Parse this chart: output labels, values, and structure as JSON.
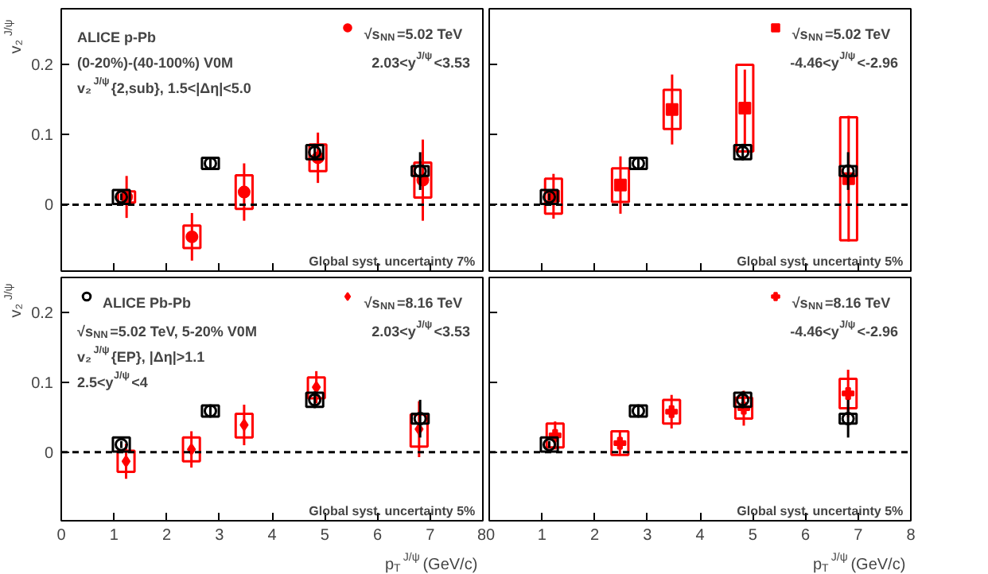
{
  "chart_data": [
    {
      "type": "scatter",
      "ylabel": "v₂$^{J/ψ}$",
      "xlim": [
        0,
        8
      ],
      "ylim": [
        -0.095,
        0.28
      ],
      "xticks": [
        0,
        1,
        2,
        3,
        4,
        5,
        6,
        7,
        8
      ],
      "yticks": [
        0,
        0.1,
        0.2
      ],
      "tick_labels": "y",
      "legend": "top right",
      "ref_lines": [
        {
          "axis": "y",
          "value": 0,
          "line_style": "dashed",
          "color": "#000000"
        }
      ],
      "annotations": [
        "2.03<y$^{J/ψ}$<3.53",
        "ALICE p-Pb",
        "(0-20%)-(40-100%) V0M",
        "v₂$^{J/ψ}${2,sub}, 1.5<|Δη|<5.0",
        "Global syst. uncertainty 7%"
      ],
      "series": [
        {
          "name": "√s$_{NN}$=5.02 TeV",
          "type": "scatter",
          "marker": "circle",
          "color": "#ff0000",
          "x": [
            1.24,
            2.48,
            3.47,
            4.87,
            6.86
          ],
          "values": [
            0.011,
            -0.046,
            0.018,
            0.067,
            0.035
          ],
          "errors": [
            0.03,
            0.034,
            0.041,
            0.036,
            0.058
          ]
        },
        {
          "type": "bar",
          "color": "#ff0000",
          "x": [
            1.24,
            2.48,
            3.47,
            4.87,
            6.86
          ],
          "base": [
            0.003,
            -0.062,
            -0.006,
            0.048,
            0.01
          ],
          "values": [
            0.016,
            0.032,
            0.048,
            0.038,
            0.05
          ]
        },
        {
          "type": "scatter",
          "marker": "circle",
          "color": "#000000",
          "x": [
            1.14,
            2.83,
            4.81,
            6.81
          ],
          "values": [
            0.011,
            0.059,
            0.075,
            0.048
          ],
          "errors": [
            0.005,
            0.007,
            0.012,
            0.027
          ]
        },
        {
          "type": "bar",
          "color": "#000000",
          "x": [
            1.14,
            2.83,
            4.81,
            6.81
          ],
          "base": [
            0.001,
            0.051,
            0.065,
            0.041
          ],
          "values": [
            0.02,
            0.016,
            0.02,
            0.014
          ]
        }
      ]
    },
    {
      "type": "scatter",
      "xlim": [
        0,
        8
      ],
      "ylim": [
        -0.095,
        0.28
      ],
      "xticks": [
        0,
        1,
        2,
        3,
        4,
        5,
        6,
        7,
        8
      ],
      "yticks": [
        0,
        0.1,
        0.2
      ],
      "tick_labels": false,
      "legend": "top right",
      "ref_lines": [
        {
          "axis": "y",
          "value": 0,
          "line_style": "dashed",
          "color": "#000000"
        }
      ],
      "annotations": [
        "-4.46<y$^{J/ψ}$<-2.96",
        "Global syst. uncertainty 5%"
      ],
      "series": [
        {
          "name": "√s$_{NN}$=5.02 TeV",
          "type": "scatter",
          "marker": "square",
          "color": "#ff0000",
          "x": [
            1.22,
            2.49,
            3.47,
            4.85,
            6.82
          ],
          "values": [
            0.012,
            0.028,
            0.136,
            0.138,
            0.037
          ],
          "errors": [
            0.032,
            0.041,
            0.05,
            0.055,
            0.09
          ]
        },
        {
          "type": "bar",
          "color": "#ff0000",
          "x": [
            1.22,
            2.49,
            3.47,
            4.85,
            6.82
          ],
          "base": [
            -0.013,
            0.004,
            0.108,
            0.076,
            -0.051
          ],
          "values": [
            0.05,
            0.048,
            0.056,
            0.124,
            0.176
          ]
        },
        {
          "type": "scatter",
          "marker": "circle",
          "color": "#000000",
          "x": [
            1.14,
            2.83,
            4.81,
            6.81
          ],
          "values": [
            0.011,
            0.059,
            0.075,
            0.048
          ],
          "errors": [
            0.005,
            0.007,
            0.012,
            0.027
          ]
        },
        {
          "type": "bar",
          "color": "#000000",
          "x": [
            1.14,
            2.83,
            4.81,
            6.81
          ],
          "base": [
            0.001,
            0.051,
            0.065,
            0.041
          ],
          "values": [
            0.02,
            0.016,
            0.02,
            0.014
          ]
        }
      ]
    },
    {
      "type": "scatter",
      "ylabel": "v₂$^{J/ψ}$",
      "xlabel": "p$_{T}$$^{J/ψ}$ (GeV/c)",
      "xlim": [
        0,
        8
      ],
      "ylim": [
        -0.098,
        0.25
      ],
      "xticks": [
        0,
        1,
        2,
        3,
        4,
        5,
        6,
        7,
        8
      ],
      "yticks": [
        0,
        0.1,
        0.2
      ],
      "legend": "top right",
      "ref_lines": [
        {
          "axis": "y",
          "value": 0,
          "line_style": "dashed",
          "color": "#000000"
        }
      ],
      "annotations": [
        "2.03<y$^{J/ψ}$<3.53",
        "√s$_{NN}$=5.02 TeV, 5-20% V0M",
        "v₂$^{J/ψ}${EP}, |Δη|>1.1",
        "2.5<y$^{J/ψ}$<4",
        "Global syst. uncertainty 5%"
      ],
      "series": [
        {
          "name": "√s$_{NN}$=8.16 TeV",
          "type": "scatter",
          "marker": "diamond",
          "color": "#ff0000",
          "x": [
            1.23,
            2.47,
            3.47,
            4.84,
            6.79
          ],
          "values": [
            -0.013,
            0.004,
            0.039,
            0.093,
            0.033
          ],
          "errors": [
            0.025,
            0.026,
            0.029,
            0.023,
            0.04
          ]
        },
        {
          "type": "bar",
          "color": "#ff0000",
          "x": [
            1.23,
            2.47,
            3.47,
            4.84,
            6.79
          ],
          "base": [
            -0.028,
            -0.013,
            0.021,
            0.077,
            0.008
          ],
          "values": [
            0.03,
            0.034,
            0.034,
            0.03,
            0.046
          ]
        },
        {
          "name": "ALICE Pb-Pb",
          "type": "scatter",
          "marker": "circle",
          "color": "#000000",
          "x": [
            1.14,
            2.83,
            4.81,
            6.81
          ],
          "values": [
            0.011,
            0.059,
            0.075,
            0.048
          ],
          "errors": [
            0.005,
            0.007,
            0.012,
            0.027
          ]
        },
        {
          "type": "bar",
          "color": "#000000",
          "x": [
            1.14,
            2.83,
            4.81,
            6.81
          ],
          "base": [
            0.001,
            0.051,
            0.065,
            0.041
          ],
          "values": [
            0.02,
            0.016,
            0.02,
            0.014
          ]
        }
      ]
    },
    {
      "type": "scatter",
      "xlabel": "p$_{T}$$^{J/ψ}$ (GeV/c)",
      "xlim": [
        0,
        8
      ],
      "ylim": [
        -0.098,
        0.25
      ],
      "xticks": [
        0,
        1,
        2,
        3,
        4,
        5,
        6,
        7,
        8
      ],
      "yticks": [
        0,
        0.1,
        0.2
      ],
      "tick_labels": "x",
      "legend": "top right",
      "ref_lines": [
        {
          "axis": "y",
          "value": 0,
          "line_style": "dashed",
          "color": "#000000"
        }
      ],
      "annotations": [
        "-4.46<y$^{J/ψ}$<-2.96",
        "Global syst. uncertainty 5%"
      ],
      "series": [
        {
          "name": "√s$_{NN}$=8.16 TeV",
          "type": "scatter",
          "marker": "cross",
          "color": "#ff0000",
          "x": [
            1.25,
            2.48,
            3.46,
            4.83,
            6.81
          ],
          "values": [
            0.024,
            0.013,
            0.058,
            0.063,
            0.084
          ],
          "errors": [
            0.02,
            0.018,
            0.024,
            0.025,
            0.034
          ]
        },
        {
          "type": "bar",
          "color": "#ff0000",
          "x": [
            1.25,
            2.48,
            3.46,
            4.83,
            6.81
          ],
          "base": [
            0.007,
            -0.004,
            0.041,
            0.048,
            0.063
          ],
          "values": [
            0.034,
            0.034,
            0.034,
            0.03,
            0.042
          ]
        },
        {
          "type": "scatter",
          "marker": "circle",
          "color": "#000000",
          "x": [
            1.14,
            2.83,
            4.81,
            6.81
          ],
          "values": [
            0.011,
            0.059,
            0.075,
            0.048
          ],
          "errors": [
            0.005,
            0.007,
            0.012,
            0.027
          ]
        },
        {
          "type": "bar",
          "color": "#000000",
          "x": [
            1.14,
            2.83,
            4.81,
            6.81
          ],
          "base": [
            0.001,
            0.051,
            0.065,
            0.041
          ],
          "values": [
            0.02,
            0.016,
            0.02,
            0.014
          ]
        }
      ]
    }
  ]
}
